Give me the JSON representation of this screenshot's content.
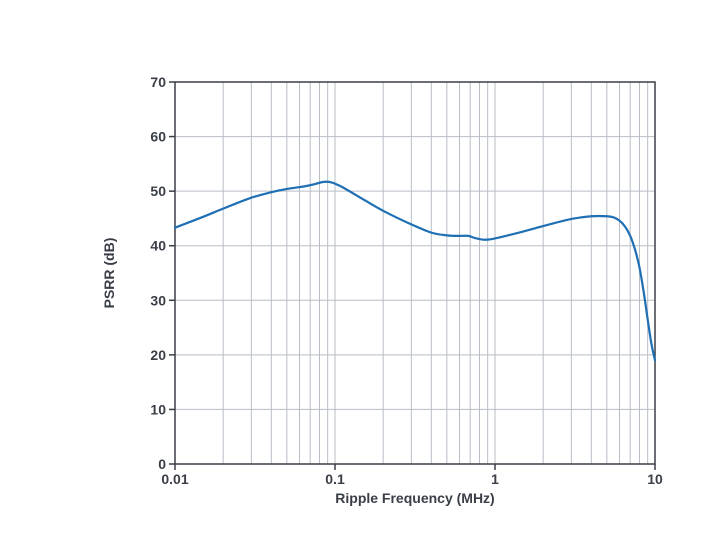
{
  "chart_data": {
    "type": "line",
    "xlabel": "Ripple Frequency (MHz)",
    "ylabel": "PSRR (dB)",
    "xscale": "log",
    "xlim": [
      0.01,
      10
    ],
    "ylim": [
      0,
      70
    ],
    "grid": true,
    "x_ticks": [
      {
        "value": 0.01,
        "label": "0.01"
      },
      {
        "value": 0.1,
        "label": "0.1"
      },
      {
        "value": 1,
        "label": "1"
      },
      {
        "value": 10,
        "label": "10"
      }
    ],
    "y_ticks": [
      {
        "value": 0,
        "label": "0"
      },
      {
        "value": 10,
        "label": "10"
      },
      {
        "value": 20,
        "label": "20"
      },
      {
        "value": 30,
        "label": "30"
      },
      {
        "value": 40,
        "label": "40"
      },
      {
        "value": 50,
        "label": "50"
      },
      {
        "value": 60,
        "label": "60"
      },
      {
        "value": 70,
        "label": "70"
      }
    ],
    "series": [
      {
        "color": "#1f6fb4",
        "x": [
          0.01,
          0.015,
          0.02,
          0.03,
          0.04,
          0.05,
          0.065,
          0.075,
          0.085,
          0.095,
          0.11,
          0.15,
          0.2,
          0.3,
          0.4,
          0.5,
          0.6,
          0.68,
          0.75,
          0.85,
          0.95,
          1.1,
          1.5,
          2,
          3,
          4,
          5,
          5.5,
          6,
          6.5,
          7,
          7.5,
          8,
          8.5,
          9,
          9.5,
          10
        ],
        "y": [
          43.3,
          45.3,
          46.8,
          48.8,
          49.8,
          50.4,
          50.9,
          51.3,
          51.7,
          51.6,
          50.8,
          48.5,
          46.4,
          43.9,
          42.4,
          41.9,
          41.8,
          41.8,
          41.4,
          41.1,
          41.2,
          41.6,
          42.6,
          43.6,
          44.9,
          45.4,
          45.4,
          45.2,
          44.6,
          43.5,
          41.8,
          39.3,
          36.0,
          31.5,
          26.5,
          22.0,
          19.0
        ]
      }
    ]
  }
}
